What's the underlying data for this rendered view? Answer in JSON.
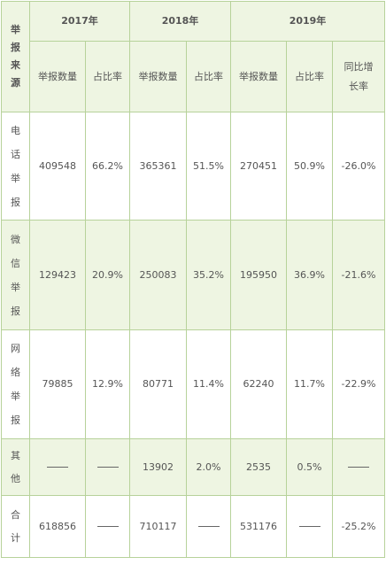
{
  "header": {
    "source_label": "举报来源",
    "years": [
      "2017年",
      "2018年",
      "2019年"
    ],
    "count_label": "举报数量",
    "share_label": "占比率",
    "yoy_label": "同比增长率"
  },
  "rows": [
    {
      "source": "电话举报",
      "c2017": "409548",
      "s2017": "66.2%",
      "c2018": "365361",
      "s2018": "51.5%",
      "c2019": "270451",
      "s2019": "50.9%",
      "yoy": "-26.0%"
    },
    {
      "source": "微信举报",
      "c2017": "129423",
      "s2017": "20.9%",
      "c2018": "250083",
      "s2018": "35.2%",
      "c2019": "195950",
      "s2019": "36.9%",
      "yoy": "-21.6%"
    },
    {
      "source": "网络举报",
      "c2017": "79885",
      "s2017": "12.9%",
      "c2018": "80771",
      "s2018": "11.4%",
      "c2019": "62240",
      "s2019": "11.7%",
      "yoy": "-22.9%"
    },
    {
      "source": "其他",
      "c2017": "——",
      "s2017": "——",
      "c2018": "13902",
      "s2018": "2.0%",
      "c2019": "2535",
      "s2019": "0.5%",
      "yoy": "——"
    },
    {
      "source": "合计",
      "c2017": "618856",
      "s2017": "——",
      "c2018": "710117",
      "s2018": "——",
      "c2019": "531176",
      "s2019": "——",
      "yoy": "-25.2%"
    }
  ]
}
